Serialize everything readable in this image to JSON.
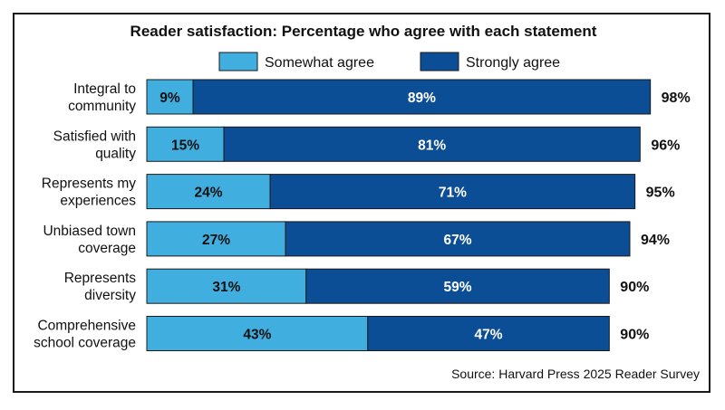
{
  "chart_data": {
    "type": "bar",
    "orientation": "horizontal",
    "stacked": true,
    "title": "Reader satisfaction: Percentage who agree with each statement",
    "categories": [
      [
        "Integral to",
        "community"
      ],
      [
        "Satisfied with",
        "quality"
      ],
      [
        "Represents my",
        "experiences"
      ],
      [
        "Unbiased town",
        "coverage"
      ],
      [
        "Represents",
        "diversity"
      ],
      [
        "Comprehensive",
        "school coverage"
      ]
    ],
    "series": [
      {
        "name": "Somewhat agree",
        "color": "#41aee0",
        "values": [
          9,
          15,
          24,
          27,
          31,
          43
        ]
      },
      {
        "name": "Strongly agree",
        "color": "#0b4e96",
        "values": [
          89,
          81,
          71,
          67,
          59,
          47
        ]
      }
    ],
    "totals": [
      98,
      96,
      95,
      94,
      90,
      90
    ],
    "xlim": [
      0,
      100
    ],
    "legend_position": "top",
    "grid": false,
    "source": "Source: Harvard Press 2025 Reader Survey"
  }
}
